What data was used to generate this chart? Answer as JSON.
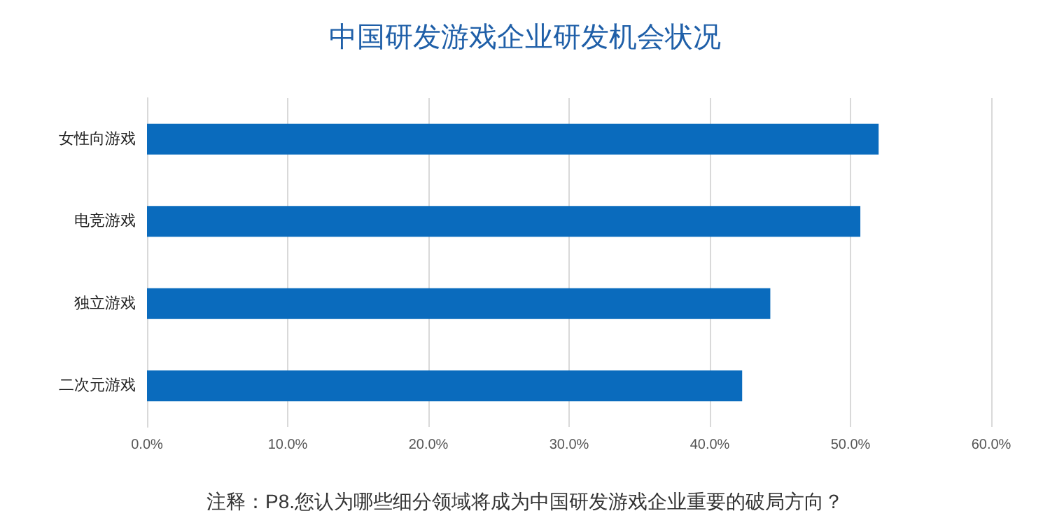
{
  "chart_data": {
    "type": "bar",
    "orientation": "horizontal",
    "title": "中国研发游戏企业研发机会状况",
    "categories": [
      "女性向游戏",
      "电竞游戏",
      "独立游戏",
      "二次元游戏"
    ],
    "values": [
      52.0,
      50.7,
      44.3,
      42.3
    ],
    "color": "#0a6bbd",
    "xlim": [
      0,
      60
    ],
    "xticks": [
      {
        "value": 0,
        "label": "0.0%"
      },
      {
        "value": 10,
        "label": "10.0%"
      },
      {
        "value": 20,
        "label": "20.0%"
      },
      {
        "value": 30,
        "label": "30.0%"
      },
      {
        "value": 40,
        "label": "40.0%"
      },
      {
        "value": 50,
        "label": "50.0%"
      },
      {
        "value": 60,
        "label": "60.0%"
      }
    ],
    "grid": "x",
    "annotations": [
      "注释：P8.您认为哪些细分领域将成为中国研发游戏企业重要的破局方向？"
    ]
  }
}
